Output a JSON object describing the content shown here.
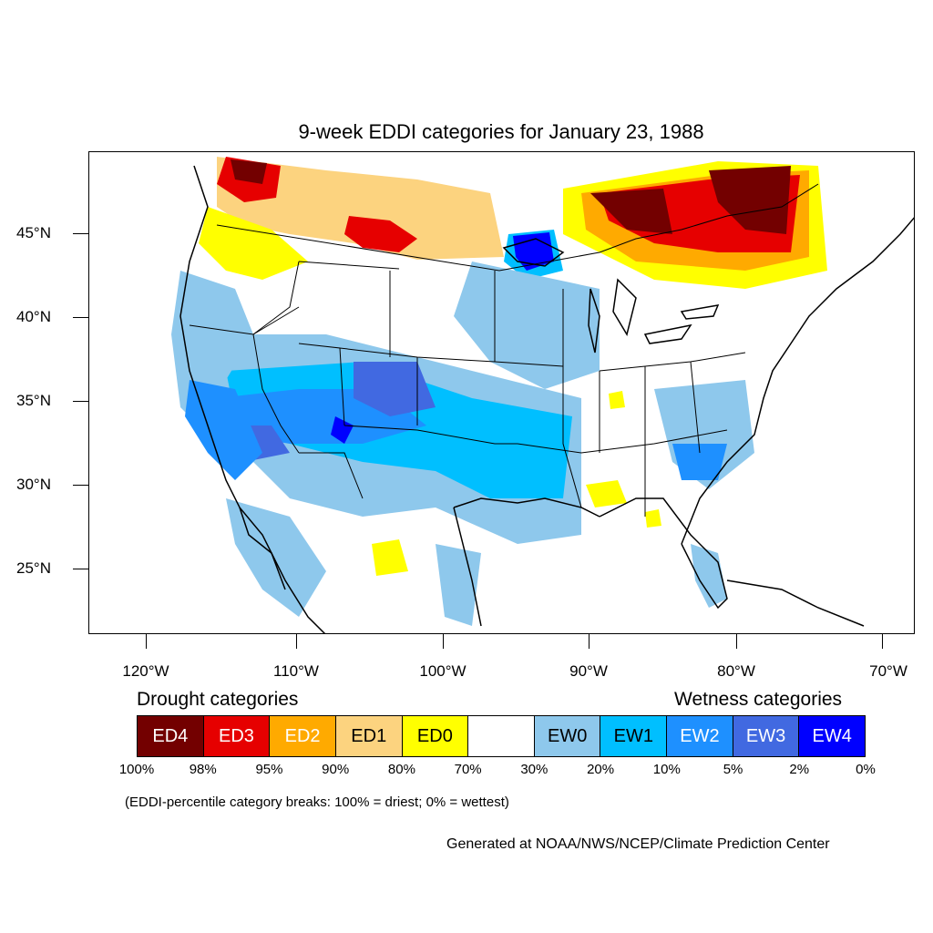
{
  "title": "9-week EDDI categories for January 23, 1988",
  "lat_labels": [
    "45°N",
    "40°N",
    "35°N",
    "30°N",
    "25°N"
  ],
  "lon_labels": [
    "120°W",
    "110°W",
    "100°W",
    "90°W",
    "80°W",
    "70°W"
  ],
  "legend": {
    "drought_heading": "Drought categories",
    "wetness_heading": "Wetness categories",
    "categories": [
      {
        "label": "ED4",
        "color": "#730000",
        "text_color": "#ffffff"
      },
      {
        "label": "ED3",
        "color": "#e60000",
        "text_color": "#ffffff"
      },
      {
        "label": "ED2",
        "color": "#ffaa00",
        "text_color": "#ffffff"
      },
      {
        "label": "ED1",
        "color": "#fcd37f",
        "text_color": "#000000"
      },
      {
        "label": "ED0",
        "color": "#ffff00",
        "text_color": "#000000"
      },
      {
        "label": "",
        "color": "#ffffff",
        "text_color": "#000000"
      },
      {
        "label": "EW0",
        "color": "#8ec8ec",
        "text_color": "#000000"
      },
      {
        "label": "EW1",
        "color": "#00bfff",
        "text_color": "#000000"
      },
      {
        "label": "EW2",
        "color": "#1e90ff",
        "text_color": "#ffffff"
      },
      {
        "label": "EW3",
        "color": "#4169e1",
        "text_color": "#ffffff"
      },
      {
        "label": "EW4",
        "color": "#0000ff",
        "text_color": "#ffffff"
      }
    ],
    "breaks": [
      "100%",
      "98%",
      "95%",
      "90%",
      "80%",
      "70%",
      "30%",
      "20%",
      "10%",
      "5%",
      "2%",
      "0%"
    ]
  },
  "note": "(EDDI-percentile category breaks: 100% = driest; 0% = wettest)",
  "credit": "Generated at NOAA/NWS/NCEP/Climate Prediction Center"
}
